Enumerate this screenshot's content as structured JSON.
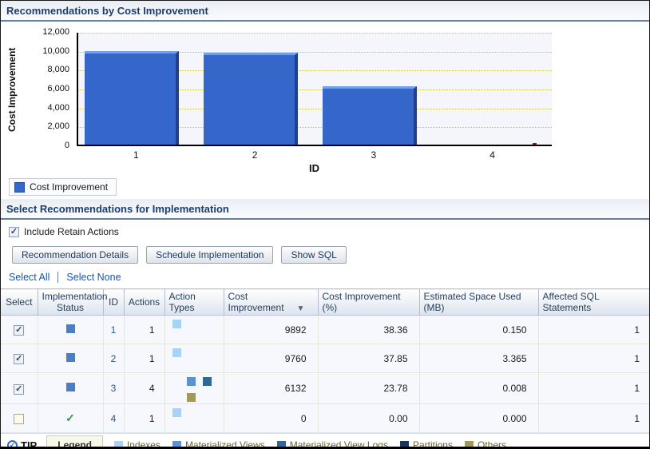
{
  "sections": {
    "chart_title": "Recommendations by Cost Improvement",
    "select_title": "Select Recommendations for Implementation"
  },
  "chart_data": {
    "type": "bar",
    "title": "Recommendations by Cost Improvement",
    "categories": [
      "1",
      "2",
      "3",
      "4"
    ],
    "values": [
      9892,
      9760,
      6132,
      0
    ],
    "series_name": "Cost Improvement",
    "xlabel": "ID",
    "ylabel": "Cost Improvement",
    "ylim": [
      0,
      12000
    ],
    "yticks": [
      "12,000",
      "10,000",
      "8,000",
      "6,000",
      "4,000",
      "2,000",
      "0"
    ],
    "grid": "horizontal-dotted",
    "legend_position": "bottom-left",
    "bar_color": "#3566c9"
  },
  "controls": {
    "include_retain": {
      "label": "Include Retain Actions",
      "checked": true
    },
    "buttons": [
      "Recommendation Details",
      "Schedule Implementation",
      "Show SQL"
    ],
    "links": [
      "Select All",
      "Select None"
    ]
  },
  "table": {
    "columns": [
      "Select",
      "Implementation Status",
      "ID",
      "Actions",
      "Action Types",
      "Cost Improvement",
      "Cost Improvement (%)",
      "Estimated Space Used (MB)",
      "Affected SQL Statements"
    ],
    "sorted_column": "Cost Improvement",
    "sort_direction": "descending",
    "rows": [
      {
        "selected": true,
        "status": "pending",
        "id": "1",
        "actions": "1",
        "action_types": [
          "indexes"
        ],
        "cost_improvement": "9892",
        "cost_improvement_pct": "38.36",
        "space_used_mb": "0.150",
        "affected_sql": "1"
      },
      {
        "selected": true,
        "status": "pending",
        "id": "2",
        "actions": "1",
        "action_types": [
          "indexes"
        ],
        "cost_improvement": "9760",
        "cost_improvement_pct": "37.85",
        "space_used_mb": "3.365",
        "affected_sql": "1"
      },
      {
        "selected": true,
        "status": "pending",
        "id": "3",
        "actions": "4",
        "action_types": [
          "materialized_views",
          "materialized_view_logs",
          "others"
        ],
        "cost_improvement": "6132",
        "cost_improvement_pct": "23.78",
        "space_used_mb": "0.008",
        "affected_sql": "1"
      },
      {
        "selected": false,
        "status": "implemented",
        "id": "4",
        "actions": "1",
        "action_types": [
          "indexes"
        ],
        "cost_improvement": "0",
        "cost_improvement_pct": "0.00",
        "space_used_mb": "0.000",
        "affected_sql": "1"
      }
    ]
  },
  "icon_colors": {
    "indexes": "#a9d3f5",
    "materialized_views": "#5b93d1",
    "materialized_view_logs": "#336699",
    "partitions": "#17375e",
    "others": "#a09a5e"
  },
  "footer": {
    "tip_label": "TIP",
    "legend_label": "Legend",
    "legend_items": [
      {
        "label": "Indexes",
        "type": "indexes"
      },
      {
        "label": "Materialized Views",
        "type": "materialized_views"
      },
      {
        "label": "Materialized View Logs",
        "type": "materialized_view_logs"
      },
      {
        "label": "Partitions",
        "type": "partitions"
      },
      {
        "label": "Others",
        "type": "others"
      }
    ]
  }
}
